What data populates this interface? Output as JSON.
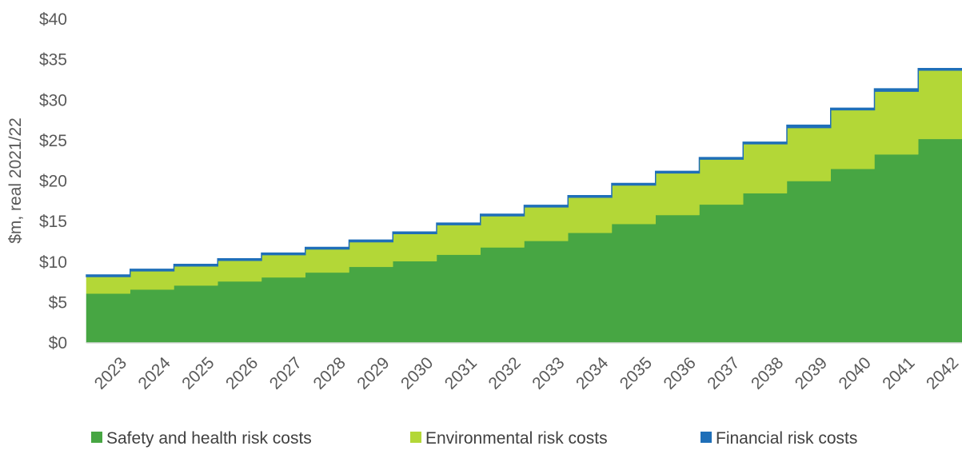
{
  "chart_data": {
    "type": "area",
    "stacked": true,
    "step": true,
    "title": "",
    "xlabel": "",
    "ylabel": "$m, real 2021/22",
    "ylim": [
      0,
      40
    ],
    "yticks": [
      "$0",
      "$5",
      "$10",
      "$15",
      "$20",
      "$25",
      "$30",
      "$35",
      "$40"
    ],
    "categories": [
      "2023",
      "2024",
      "2025",
      "2026",
      "2027",
      "2028",
      "2029",
      "2030",
      "2031",
      "2032",
      "2033",
      "2034",
      "2035",
      "2036",
      "2037",
      "2038",
      "2039",
      "2040",
      "2041",
      "2042"
    ],
    "series": [
      {
        "name": "Safety and health risk costs",
        "color": "#47a643",
        "values": [
          6.1,
          6.6,
          7.1,
          7.6,
          8.1,
          8.7,
          9.4,
          10.1,
          10.9,
          11.8,
          12.6,
          13.6,
          14.7,
          15.8,
          17.1,
          18.5,
          20.0,
          21.5,
          23.3,
          25.2
        ]
      },
      {
        "name": "Environmental risk costs",
        "color": "#b3d737",
        "values": [
          2.1,
          2.3,
          2.4,
          2.6,
          2.8,
          2.9,
          3.1,
          3.4,
          3.7,
          3.9,
          4.2,
          4.4,
          4.8,
          5.2,
          5.6,
          6.1,
          6.6,
          7.3,
          7.8,
          8.5
        ]
      },
      {
        "name": "Financial risk costs",
        "color": "#1f6fb8",
        "values": [
          0.2,
          0.2,
          0.2,
          0.2,
          0.2,
          0.2,
          0.2,
          0.2,
          0.2,
          0.2,
          0.2,
          0.2,
          0.2,
          0.2,
          0.2,
          0.2,
          0.3,
          0.2,
          0.3,
          0.2
        ]
      }
    ],
    "legend_position": "bottom",
    "grid": false
  }
}
